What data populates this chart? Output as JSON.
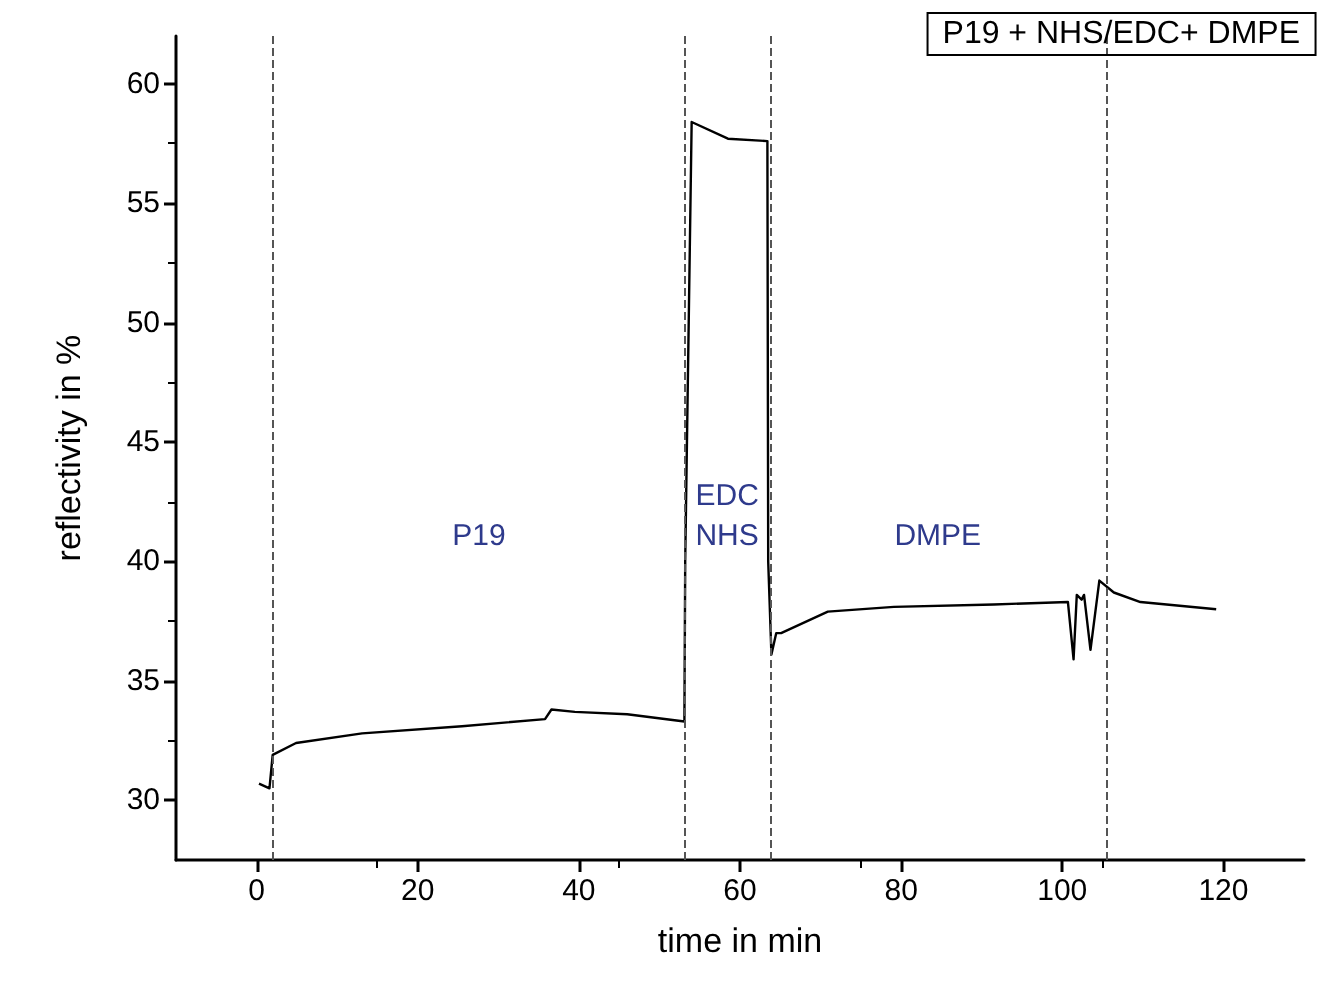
{
  "chart_data": {
    "type": "line",
    "title": "P19 + NHS/EDC+ DMPE",
    "xlabel": "time in min",
    "ylabel": "reflectivity in %",
    "series": [
      {
        "color": "#000000",
        "x": [
          0.3,
          1.6,
          2.0,
          4.9,
          13.1,
          25.5,
          35.8,
          36.6,
          39.5,
          46,
          53.1,
          53.2,
          54,
          58.5,
          63.4,
          63.5,
          63.9,
          64.5,
          65.1,
          70.9,
          79.1,
          91.5,
          100.7,
          101.4,
          101.8,
          102.4,
          102.7,
          103.5,
          104.6,
          106.4,
          109.7,
          119.1
        ],
        "values": [
          30.7,
          30.5,
          31.9,
          32.4,
          32.8,
          33.1,
          33.4,
          33.8,
          33.7,
          33.6,
          33.3,
          40.0,
          58.4,
          57.7,
          57.6,
          40.0,
          36.1,
          37.0,
          37.0,
          37.9,
          38.1,
          38.2,
          38.3,
          35.9,
          38.6,
          38.4,
          38.6,
          36.3,
          39.2,
          38.7,
          38.3,
          38.0
        ]
      }
    ],
    "xlim": [
      -10,
      130
    ],
    "xticks": [
      0,
      20,
      40,
      60,
      80,
      100,
      120
    ],
    "ylim": [
      27.5,
      62
    ],
    "yticks": [
      30,
      35,
      40,
      45,
      50,
      55,
      60
    ],
    "grid": false,
    "marker": "none",
    "line_style": "solid",
    "ref_lines": [
      {
        "axis": "x",
        "value": 2.1,
        "color": "#555555",
        "line_style": "dashed"
      },
      {
        "axis": "x",
        "value": 53.1,
        "color": "#555555",
        "line_style": "dashed"
      },
      {
        "axis": "x",
        "value": 63.7,
        "color": "#555555",
        "line_style": "dashed"
      },
      {
        "axis": "x",
        "value": 105.4,
        "color": "#555555",
        "line_style": "dashed"
      }
    ],
    "annotations": [
      "P19",
      "EDC\nNHS",
      "DMPE"
    ]
  }
}
